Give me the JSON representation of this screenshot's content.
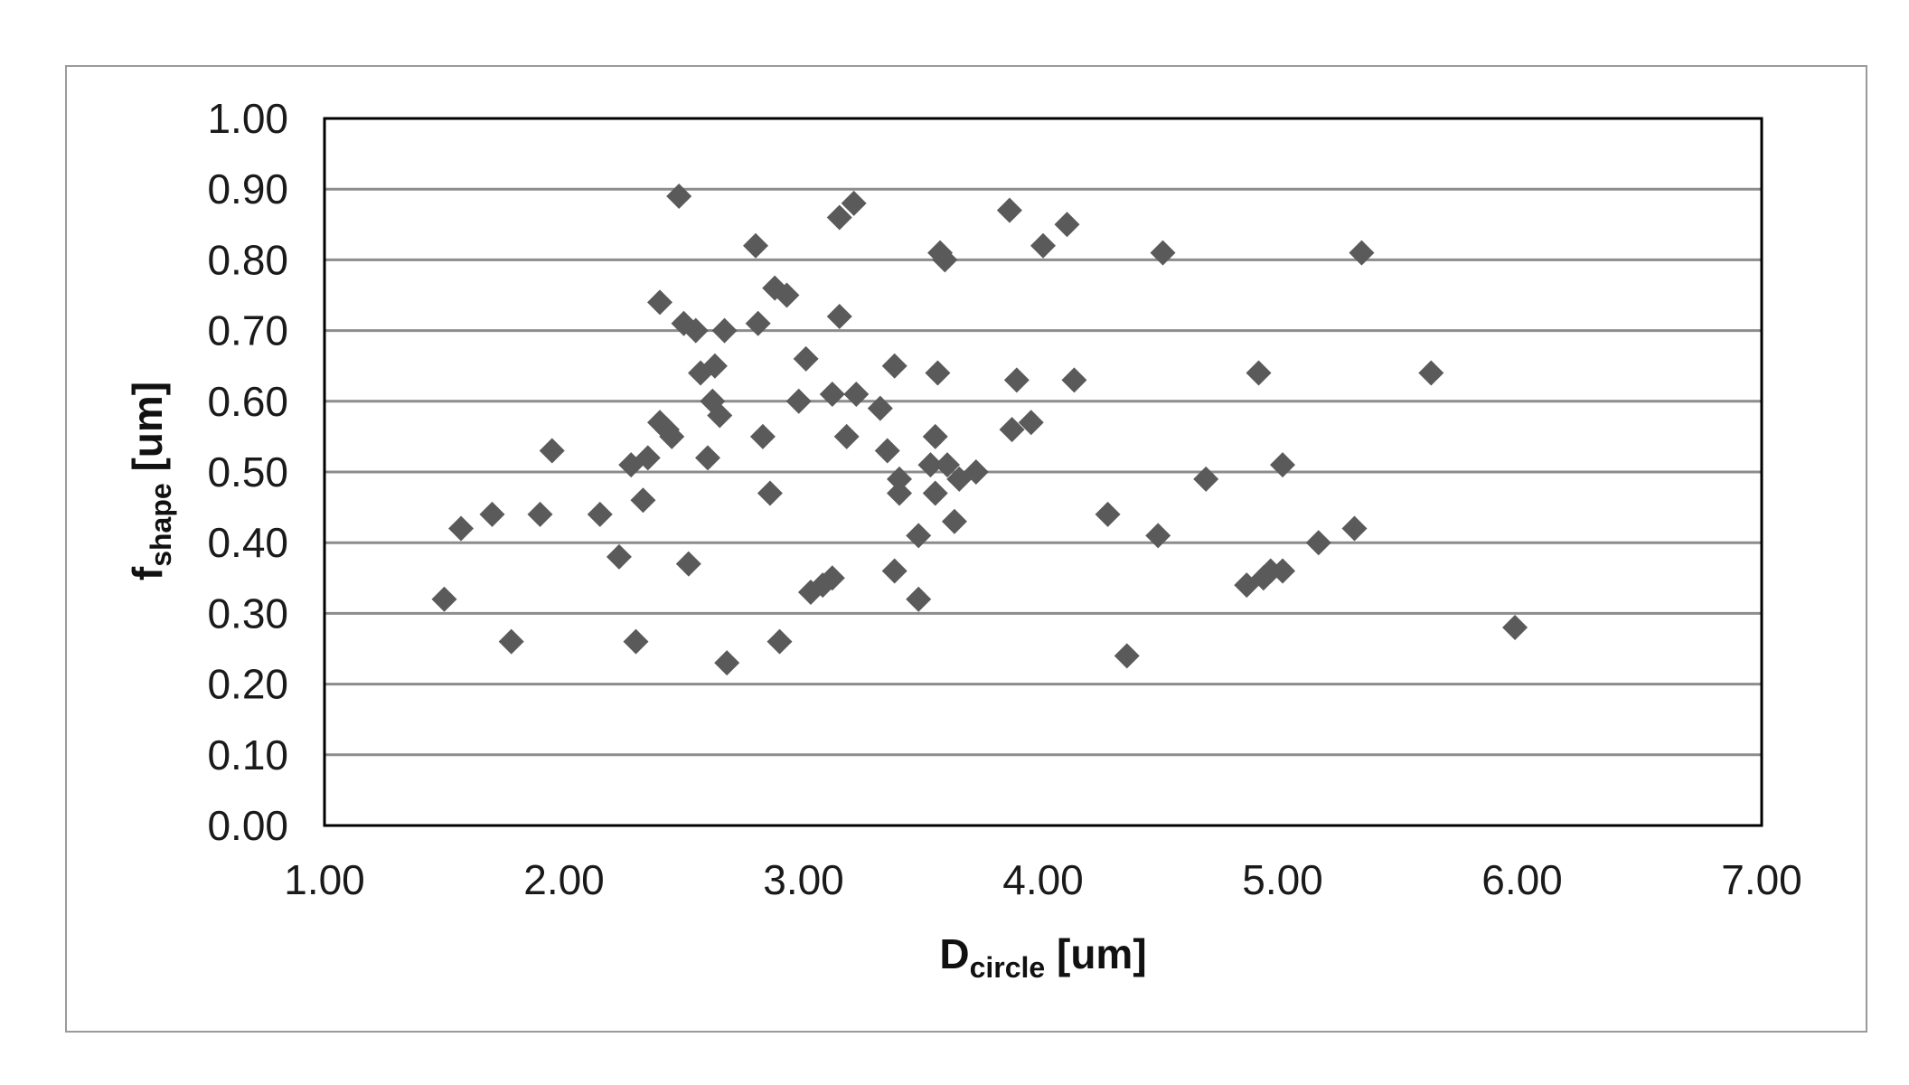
{
  "chart_data": {
    "type": "scatter",
    "title": "",
    "xlabel": {
      "main": "D",
      "sub": "circle",
      "unit": " [um]"
    },
    "ylabel": {
      "main": "f",
      "sub": "shape",
      "unit": " [um]"
    },
    "xlim": [
      1.0,
      7.0
    ],
    "ylim": [
      0.0,
      1.0
    ],
    "x_ticks": [
      "1.00",
      "2.00",
      "3.00",
      "4.00",
      "5.00",
      "6.00",
      "7.00"
    ],
    "y_ticks": [
      "0.00",
      "0.10",
      "0.20",
      "0.30",
      "0.40",
      "0.50",
      "0.60",
      "0.70",
      "0.80",
      "0.90",
      "1.00"
    ],
    "grid": {
      "horizontal": true,
      "vertical": false
    },
    "legend": "none",
    "marker": "diamond",
    "colors": {
      "marker": "#5a5a5a",
      "grid": "#8c8c8c",
      "plot_border": "#000000",
      "frame_border": "#9a9a9a"
    },
    "series": [
      {
        "points": [
          {
            "x": 1.5,
            "y": 0.32
          },
          {
            "x": 1.57,
            "y": 0.42
          },
          {
            "x": 1.7,
            "y": 0.44
          },
          {
            "x": 1.78,
            "y": 0.26
          },
          {
            "x": 1.9,
            "y": 0.44
          },
          {
            "x": 1.95,
            "y": 0.53
          },
          {
            "x": 2.15,
            "y": 0.44
          },
          {
            "x": 2.23,
            "y": 0.38
          },
          {
            "x": 2.28,
            "y": 0.51
          },
          {
            "x": 2.3,
            "y": 0.26
          },
          {
            "x": 2.33,
            "y": 0.46
          },
          {
            "x": 2.35,
            "y": 0.52
          },
          {
            "x": 2.4,
            "y": 0.74
          },
          {
            "x": 2.4,
            "y": 0.57
          },
          {
            "x": 2.43,
            "y": 0.56
          },
          {
            "x": 2.45,
            "y": 0.55
          },
          {
            "x": 2.48,
            "y": 0.89
          },
          {
            "x": 2.5,
            "y": 0.71
          },
          {
            "x": 2.52,
            "y": 0.37
          },
          {
            "x": 2.55,
            "y": 0.7
          },
          {
            "x": 2.57,
            "y": 0.64
          },
          {
            "x": 2.6,
            "y": 0.52
          },
          {
            "x": 2.62,
            "y": 0.6
          },
          {
            "x": 2.63,
            "y": 0.65
          },
          {
            "x": 2.65,
            "y": 0.58
          },
          {
            "x": 2.67,
            "y": 0.7
          },
          {
            "x": 2.68,
            "y": 0.23
          },
          {
            "x": 2.8,
            "y": 0.82
          },
          {
            "x": 2.81,
            "y": 0.71
          },
          {
            "x": 2.83,
            "y": 0.55
          },
          {
            "x": 2.86,
            "y": 0.47
          },
          {
            "x": 2.88,
            "y": 0.76
          },
          {
            "x": 2.9,
            "y": 0.26
          },
          {
            "x": 2.93,
            "y": 0.75
          },
          {
            "x": 2.98,
            "y": 0.6
          },
          {
            "x": 3.01,
            "y": 0.66
          },
          {
            "x": 3.03,
            "y": 0.33
          },
          {
            "x": 3.08,
            "y": 0.34
          },
          {
            "x": 3.12,
            "y": 0.61
          },
          {
            "x": 3.12,
            "y": 0.35
          },
          {
            "x": 3.15,
            "y": 0.72
          },
          {
            "x": 3.15,
            "y": 0.86
          },
          {
            "x": 3.18,
            "y": 0.55
          },
          {
            "x": 3.21,
            "y": 0.88
          },
          {
            "x": 3.22,
            "y": 0.61
          },
          {
            "x": 3.32,
            "y": 0.59
          },
          {
            "x": 3.35,
            "y": 0.53
          },
          {
            "x": 3.38,
            "y": 0.65
          },
          {
            "x": 3.38,
            "y": 0.36
          },
          {
            "x": 3.4,
            "y": 0.49
          },
          {
            "x": 3.4,
            "y": 0.47
          },
          {
            "x": 3.48,
            "y": 0.41
          },
          {
            "x": 3.48,
            "y": 0.32
          },
          {
            "x": 3.53,
            "y": 0.51
          },
          {
            "x": 3.55,
            "y": 0.47
          },
          {
            "x": 3.55,
            "y": 0.55
          },
          {
            "x": 3.56,
            "y": 0.64
          },
          {
            "x": 3.57,
            "y": 0.81
          },
          {
            "x": 3.59,
            "y": 0.8
          },
          {
            "x": 3.6,
            "y": 0.51
          },
          {
            "x": 3.63,
            "y": 0.43
          },
          {
            "x": 3.65,
            "y": 0.49
          },
          {
            "x": 3.72,
            "y": 0.5
          },
          {
            "x": 3.86,
            "y": 0.87
          },
          {
            "x": 3.87,
            "y": 0.56
          },
          {
            "x": 3.89,
            "y": 0.63
          },
          {
            "x": 3.95,
            "y": 0.57
          },
          {
            "x": 4.0,
            "y": 0.82
          },
          {
            "x": 4.1,
            "y": 0.85
          },
          {
            "x": 4.13,
            "y": 0.63
          },
          {
            "x": 4.27,
            "y": 0.44
          },
          {
            "x": 4.35,
            "y": 0.24
          },
          {
            "x": 4.48,
            "y": 0.41
          },
          {
            "x": 4.5,
            "y": 0.81
          },
          {
            "x": 4.68,
            "y": 0.49
          },
          {
            "x": 4.85,
            "y": 0.34
          },
          {
            "x": 4.9,
            "y": 0.64
          },
          {
            "x": 4.92,
            "y": 0.35
          },
          {
            "x": 4.95,
            "y": 0.36
          },
          {
            "x": 5.0,
            "y": 0.36
          },
          {
            "x": 5.0,
            "y": 0.51
          },
          {
            "x": 5.15,
            "y": 0.4
          },
          {
            "x": 5.3,
            "y": 0.42
          },
          {
            "x": 5.33,
            "y": 0.81
          },
          {
            "x": 5.62,
            "y": 0.64
          },
          {
            "x": 5.97,
            "y": 0.28
          }
        ]
      }
    ]
  }
}
